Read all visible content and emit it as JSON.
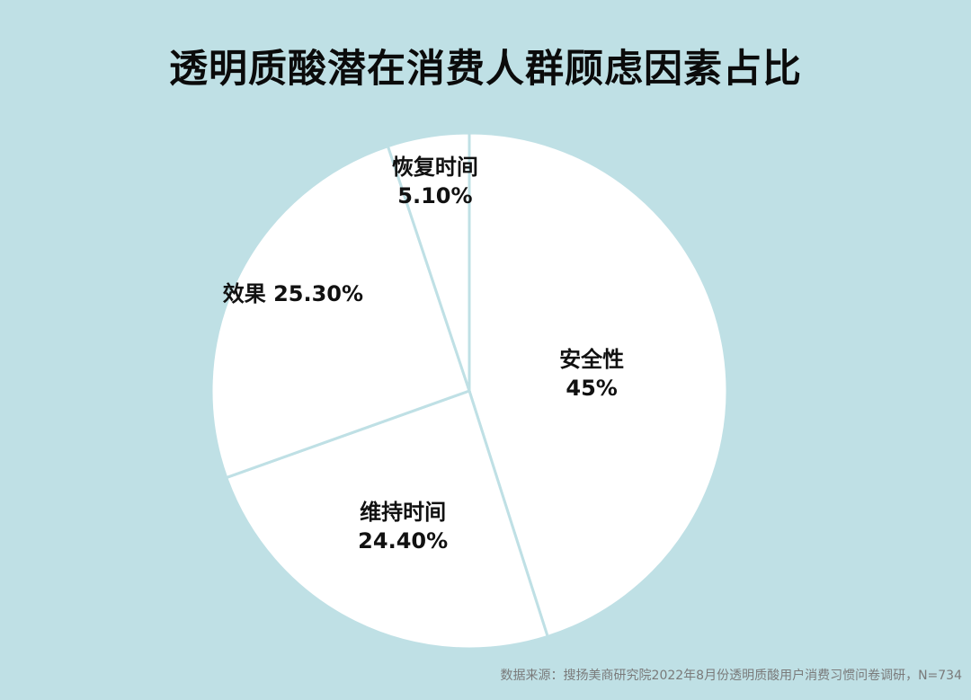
{
  "title": "透明质酸潜在消费人群顾虑因素占比",
  "source": "数据来源：搜扬美商研究院2022年8月份透明质酸用户消费习惯问卷调研，N=734",
  "colors": {
    "background": "#bfe0e5",
    "slice_fill": "#ffffff",
    "slice_stroke": "#bfe0e5",
    "text": "#111111"
  },
  "chart_data": {
    "type": "pie",
    "title": "透明质酸潜在消费人群顾虑因素占比",
    "categories": [
      "安全性",
      "维持时间",
      "效果",
      "恢复时间"
    ],
    "values": [
      45,
      24.4,
      25.3,
      5.1
    ],
    "data_labels": [
      "45%",
      "24.40%",
      "25.30%",
      "5.10%"
    ],
    "legend": "none"
  }
}
